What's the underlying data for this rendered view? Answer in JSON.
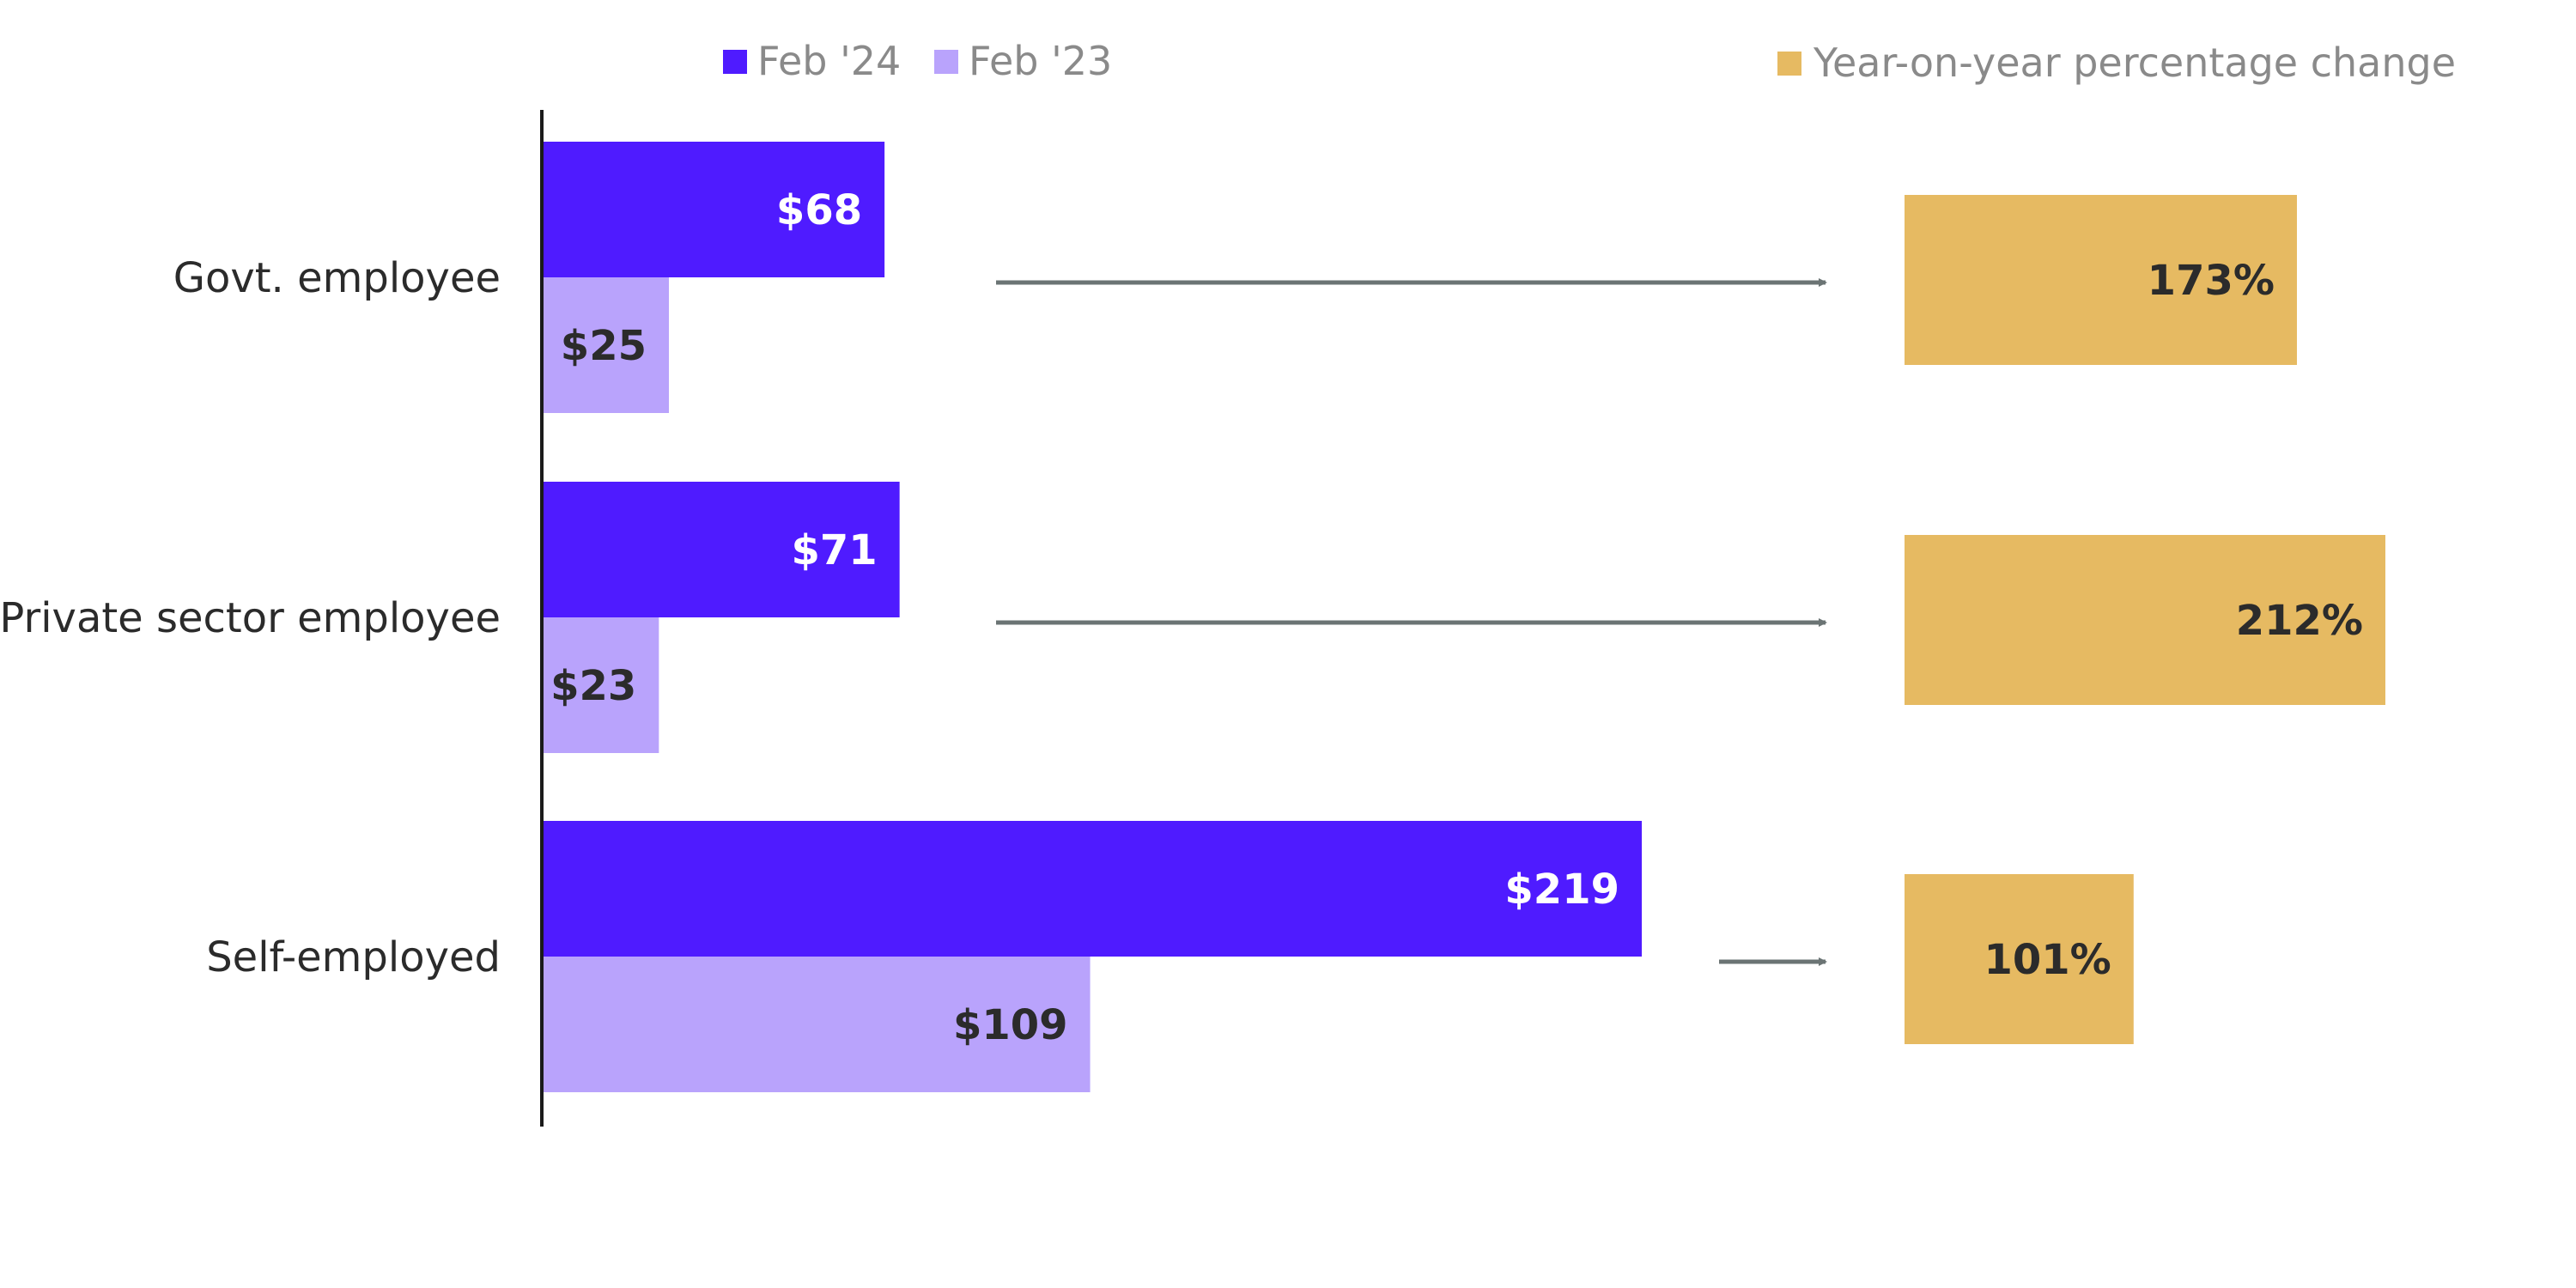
{
  "chart_data": {
    "type": "bar",
    "orientation": "horizontal",
    "categories": [
      "Govt. employee",
      "Private sector employee",
      "Self-employed"
    ],
    "series": [
      {
        "name": "Feb '24",
        "values": [
          68,
          71,
          219
        ],
        "labels": [
          "$68",
          "$71",
          "$219"
        ],
        "color": "#4f1bff",
        "label_color": "#ffffff"
      },
      {
        "name": "Feb '23",
        "values": [
          25,
          23,
          109
        ],
        "labels": [
          "$25",
          "$23",
          "$109"
        ],
        "color": "#b9a3fc",
        "label_color": "#2b2b2b"
      }
    ],
    "yoy": {
      "name": "Year-on-year percentage change",
      "values": [
        173,
        212,
        101
      ],
      "labels": [
        "173%",
        "212%",
        "101%"
      ],
      "color": "#e6ba62"
    },
    "arrow_color": "#6b7474",
    "grid": false,
    "legend_position": "top"
  }
}
